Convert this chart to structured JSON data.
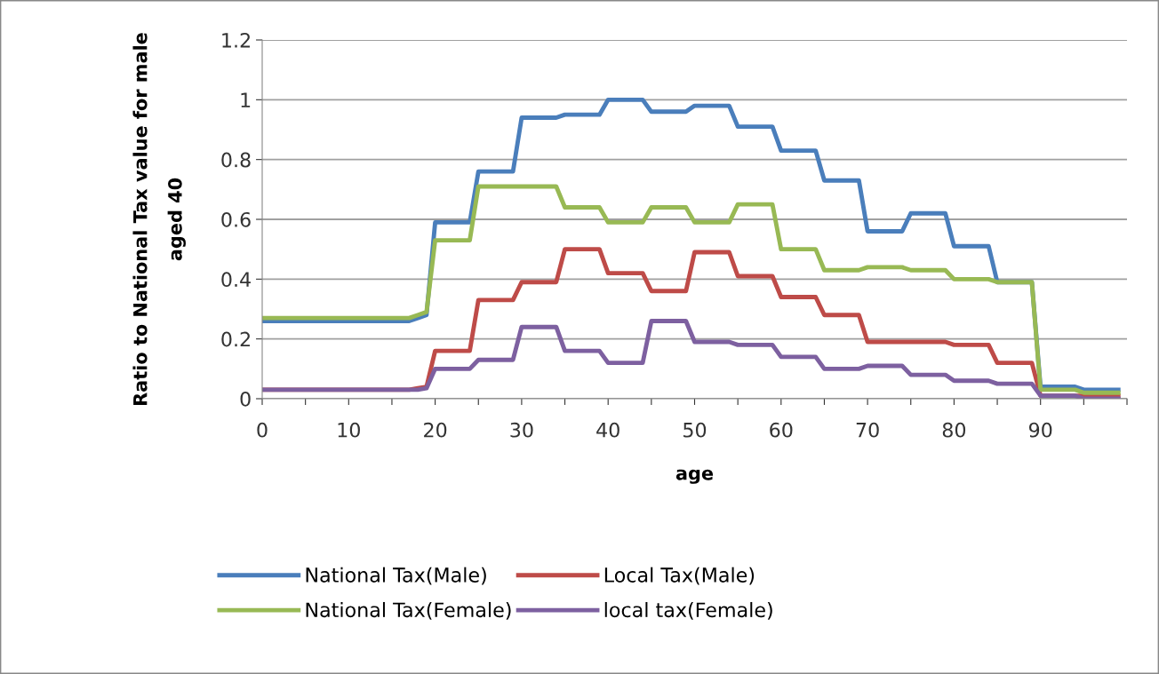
{
  "chart_data": {
    "type": "line",
    "xlabel": "age",
    "ylabel": "Ratio to National Tax value for male\naged 40",
    "x": [
      0,
      17,
      18,
      19,
      20,
      24,
      25,
      29,
      30,
      34,
      35,
      39,
      40,
      44,
      45,
      49,
      50,
      54,
      55,
      59,
      60,
      64,
      65,
      69,
      70,
      74,
      75,
      79,
      80,
      84,
      85,
      89,
      90,
      94,
      95,
      99
    ],
    "series": [
      {
        "name": "National Tax(Male)",
        "color": "#4a7ebb",
        "values": [
          0.26,
          0.26,
          0.27,
          0.28,
          0.59,
          0.59,
          0.76,
          0.76,
          0.94,
          0.94,
          0.95,
          0.95,
          1.0,
          1.0,
          0.96,
          0.96,
          0.98,
          0.98,
          0.91,
          0.91,
          0.83,
          0.83,
          0.73,
          0.73,
          0.56,
          0.56,
          0.62,
          0.62,
          0.51,
          0.51,
          0.39,
          0.39,
          0.04,
          0.04,
          0.03,
          0.03
        ]
      },
      {
        "name": "Local Tax(Male)",
        "color": "#be4b48",
        "values": [
          0.03,
          0.03,
          0.035,
          0.04,
          0.16,
          0.16,
          0.33,
          0.33,
          0.39,
          0.39,
          0.5,
          0.5,
          0.42,
          0.42,
          0.36,
          0.36,
          0.49,
          0.49,
          0.41,
          0.41,
          0.34,
          0.34,
          0.28,
          0.28,
          0.19,
          0.19,
          0.19,
          0.19,
          0.18,
          0.18,
          0.12,
          0.12,
          0.01,
          0.01,
          0.01,
          0.01
        ]
      },
      {
        "name": "National Tax(Female)",
        "color": "#98b954",
        "values": [
          0.27,
          0.27,
          0.28,
          0.29,
          0.53,
          0.53,
          0.71,
          0.71,
          0.71,
          0.71,
          0.64,
          0.64,
          0.59,
          0.59,
          0.64,
          0.64,
          0.59,
          0.59,
          0.65,
          0.65,
          0.5,
          0.5,
          0.43,
          0.43,
          0.44,
          0.44,
          0.43,
          0.43,
          0.4,
          0.4,
          0.39,
          0.39,
          0.03,
          0.03,
          0.02,
          0.02
        ]
      },
      {
        "name": "local tax(Female)",
        "color": "#7d60a0",
        "values": [
          0.03,
          0.03,
          0.03,
          0.035,
          0.1,
          0.1,
          0.13,
          0.13,
          0.24,
          0.24,
          0.16,
          0.16,
          0.12,
          0.12,
          0.26,
          0.26,
          0.19,
          0.19,
          0.18,
          0.18,
          0.14,
          0.14,
          0.1,
          0.1,
          0.11,
          0.11,
          0.08,
          0.08,
          0.06,
          0.06,
          0.05,
          0.05,
          0.01,
          0.01,
          0.0,
          0.0
        ]
      }
    ],
    "xlim": [
      0,
      100
    ],
    "xticks": [
      0,
      {
        "value": 5,
        "label": null
      },
      10,
      {
        "value": 15,
        "label": null
      },
      20,
      {
        "value": 25,
        "label": null
      },
      30,
      {
        "value": 35,
        "label": null
      },
      40,
      {
        "value": 45,
        "label": null
      },
      50,
      {
        "value": 55,
        "label": null
      },
      60,
      {
        "value": 65,
        "label": null
      },
      70,
      {
        "value": 75,
        "label": null
      },
      80,
      {
        "value": 85,
        "label": null
      },
      90,
      {
        "value": 95,
        "label": null
      },
      {
        "value": 100,
        "label": null
      }
    ],
    "ylim": [
      0,
      1.2
    ],
    "yticks": [
      0,
      0.2,
      0.4,
      0.6,
      0.8,
      1,
      1.2
    ],
    "grid": "y",
    "legend": "bottom",
    "marker": "none",
    "line_style": "solid"
  }
}
